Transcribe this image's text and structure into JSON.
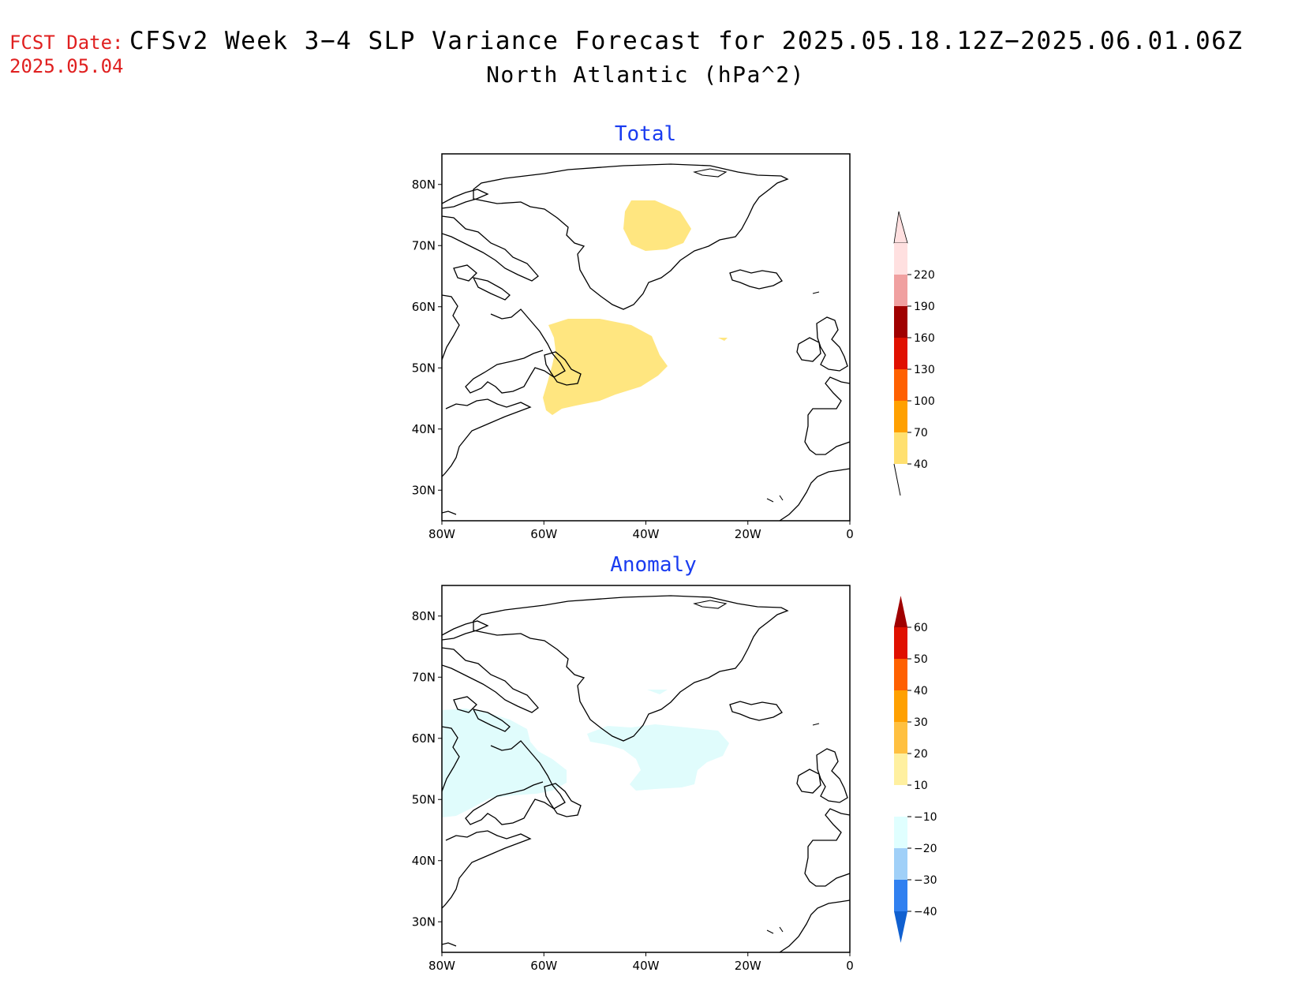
{
  "header": {
    "fcst_label": "FCST Date:",
    "fcst_date": "2025.05.04",
    "title_line1": "CFSv2 Week 3−4 SLP Variance Forecast for 2025.05.18.12Z−2025.06.01.06Z",
    "title_line2": "North Atlantic (hPa^2)"
  },
  "map": {
    "lon_ticks": [
      "80W",
      "60W",
      "40W",
      "20W",
      "0"
    ],
    "lat_ticks": [
      "80N",
      "70N",
      "60N",
      "50N",
      "40N",
      "30N"
    ]
  },
  "panels": [
    {
      "title": "Total",
      "colorbar": {
        "labels": [
          "220",
          "190",
          "160",
          "130",
          "100",
          "70",
          "40"
        ],
        "colors": [
          "#ffe0e0",
          "#f0a0a0",
          "#a00000",
          "#e01000",
          "#ff6000",
          "#ffa000",
          "#ffe070"
        ]
      },
      "shaded_regions": [
        {
          "name": "greenland-east-region",
          "level": "40–70",
          "color": "#ffe680"
        },
        {
          "name": "labrador-sea-newfoundland-region",
          "level": "40–70",
          "color": "#ffe680"
        }
      ]
    },
    {
      "title": "Anomaly",
      "colorbar": {
        "labels": [
          "60",
          "50",
          "40",
          "30",
          "20",
          "10",
          "−10",
          "−20",
          "−30",
          "−40"
        ],
        "colors": [
          "#a00000",
          "#e01000",
          "#ff6000",
          "#ffa000",
          "#ffc040",
          "#fff0a0",
          "#ffffff",
          "#e0ffff",
          "#a0d0f8",
          "#3080f0",
          "#1060d0"
        ]
      },
      "shaded_regions": [
        {
          "name": "hudson-bay-labrador-region",
          "level": "−10 to −20",
          "color": "#e0fcfc"
        },
        {
          "name": "south-greenland-region",
          "level": "−10 to −20",
          "color": "#e0fcfc"
        }
      ]
    }
  ]
}
